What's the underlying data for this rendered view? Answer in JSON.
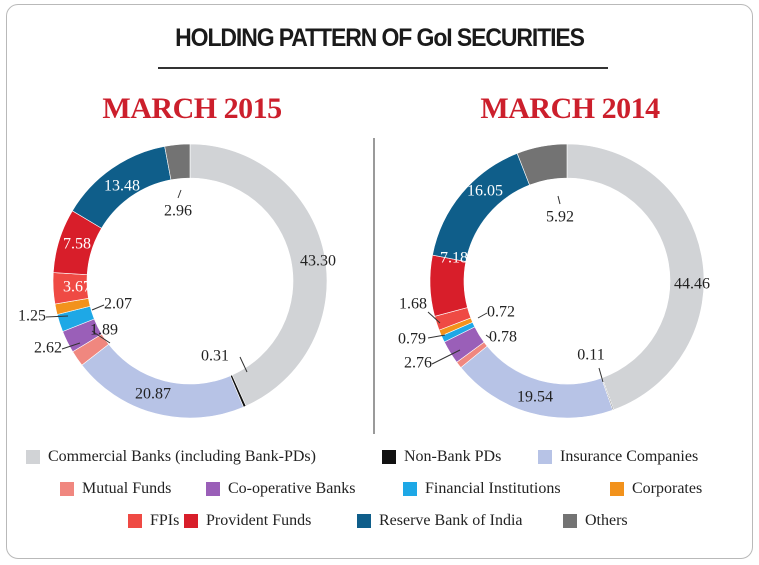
{
  "title": "HOLDING PATTERN OF GoI SECURITIES",
  "chart_data": [
    {
      "type": "pie",
      "title": "MARCH 2015",
      "categories": [
        "Commercial Banks (including Bank-PDs)",
        "Non-Bank PDs",
        "Insurance Companies",
        "Mutual Funds",
        "Co-operative Banks",
        "Financial Institutions",
        "Corporates",
        "FPIs",
        "Provident Funds",
        "Reserve Bank of India",
        "Others"
      ],
      "values": [
        43.3,
        0.31,
        20.87,
        1.89,
        2.62,
        2.07,
        1.25,
        3.67,
        7.58,
        13.48,
        2.96
      ],
      "labels": [
        "43.30",
        "0.31",
        "20.87",
        "1.89",
        "2.62",
        "2.07",
        "1.25",
        "3.67",
        "7.58",
        "13.48",
        "2.96"
      ]
    },
    {
      "type": "pie",
      "title": "MARCH 2014",
      "categories": [
        "Commercial Banks (including Bank-PDs)",
        "Non-Bank PDs",
        "Insurance Companies",
        "Mutual Funds",
        "Co-operative Banks",
        "Financial Institutions",
        "Corporates",
        "FPIs",
        "Provident Funds",
        "Reserve Bank of India",
        "Others"
      ],
      "values": [
        44.46,
        0.11,
        19.54,
        0.78,
        2.76,
        0.79,
        0.72,
        1.68,
        7.18,
        16.05,
        5.92
      ],
      "labels": [
        "44.46",
        "0.11",
        "19.54",
        "0.78",
        "2.76",
        "0.79",
        "0.72",
        "1.68",
        "7.18",
        "16.05",
        "5.92"
      ]
    }
  ],
  "legend": [
    {
      "label": "Commercial Banks (including Bank-PDs)",
      "color": "#d1d3d6"
    },
    {
      "label": "Non-Bank PDs",
      "color": "#111111"
    },
    {
      "label": "Insurance Companies",
      "color": "#b7c3e6"
    },
    {
      "label": "Mutual Funds",
      "color": "#f0877f"
    },
    {
      "label": "Co-operative Banks",
      "color": "#9a5fb8"
    },
    {
      "label": "Financial Institutions",
      "color": "#1ea8e6"
    },
    {
      "label": "Corporates",
      "color": "#f2921c"
    },
    {
      "label": "FPIs",
      "color": "#ef4a44"
    },
    {
      "label": "Provident Funds",
      "color": "#d81e2a"
    },
    {
      "label": "Reserve Bank of India",
      "color": "#0f5e8a"
    },
    {
      "label": "Others",
      "color": "#737373"
    }
  ]
}
